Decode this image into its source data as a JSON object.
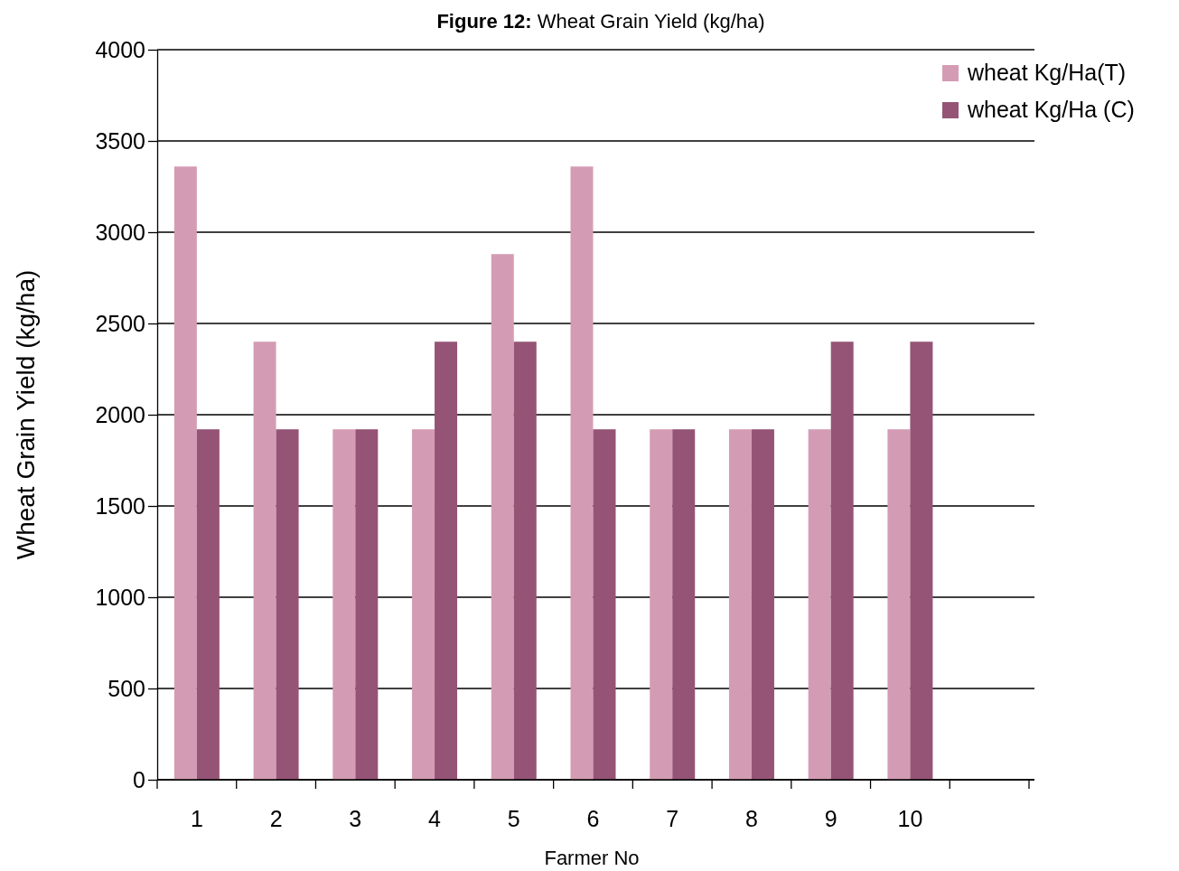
{
  "chart_data": {
    "type": "bar",
    "title": "Figure 12: Wheat Grain Yield (kg/ha)",
    "xlabel": "Farmer No",
    "ylabel": "Wheat Grain Yield (kg/ha)",
    "categories": [
      "1",
      "2",
      "3",
      "4",
      "5",
      "6",
      "7",
      "8",
      "9",
      "10",
      null
    ],
    "series": [
      {
        "name": "wheat Kg/Ha(T)",
        "color": "#d49cb4",
        "values": [
          3360,
          2400,
          1920,
          1920,
          2880,
          3360,
          1920,
          1920,
          1920,
          1920,
          null
        ]
      },
      {
        "name": "wheat Kg/Ha (C)",
        "color": "#955476",
        "values": [
          1920,
          1920,
          1920,
          2400,
          2400,
          1920,
          1920,
          1920,
          2400,
          2400,
          null
        ]
      }
    ],
    "ylim": [
      0,
      4000
    ],
    "yticks": [
      0,
      500,
      1000,
      1500,
      2000,
      2500,
      3000,
      3500,
      4000
    ],
    "grid": "y",
    "legend": "top right"
  }
}
